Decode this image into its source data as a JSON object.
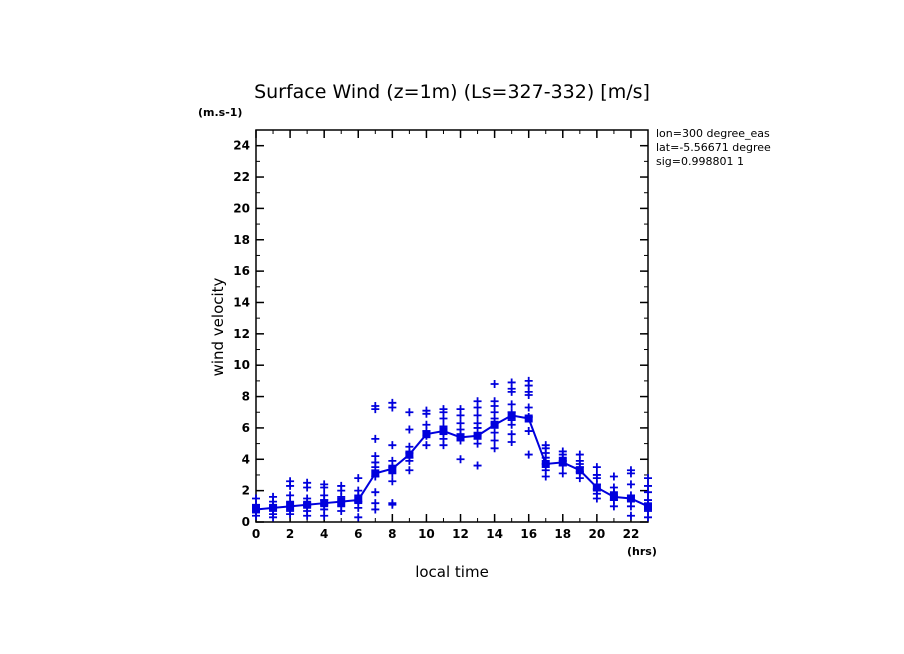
{
  "chart_data": {
    "type": "scatter",
    "title": "Surface Wind (z=1m) (Ls=327-332) [m/s]",
    "ylabel": "wind velocity",
    "xlabel": "local time",
    "y_units_label": "(m.s-1)",
    "x_units_label": "(hrs)",
    "xlim": [
      0,
      23
    ],
    "ylim": [
      0,
      25
    ],
    "x_ticks": [
      0,
      2,
      4,
      6,
      8,
      10,
      12,
      14,
      16,
      18,
      20,
      22
    ],
    "y_ticks": [
      0,
      2,
      4,
      6,
      8,
      10,
      12,
      14,
      16,
      18,
      20,
      22,
      24
    ],
    "info_lines": [
      "lon=300 degree_eas",
      "lat=-5.56671 degree",
      "sig=0.998801 1"
    ],
    "color": "#0000dd",
    "mean_series": {
      "name": "mean",
      "x": [
        0,
        1,
        2,
        3,
        4,
        5,
        6,
        7,
        8,
        9,
        10,
        11,
        12,
        13,
        14,
        15,
        16,
        17,
        18,
        19,
        20,
        21,
        22,
        23
      ],
      "y": [
        0.8,
        0.9,
        1.0,
        1.1,
        1.2,
        1.3,
        1.4,
        3.1,
        3.4,
        4.3,
        5.6,
        5.8,
        5.4,
        5.5,
        6.2,
        6.8,
        6.6,
        3.7,
        3.8,
        3.3,
        2.2,
        1.6,
        1.5,
        1.0
      ]
    },
    "scatter_points": [
      {
        "x": 0,
        "y": [
          0.4,
          0.7,
          0.9,
          1.1,
          1.5
        ]
      },
      {
        "x": 1,
        "y": [
          0.3,
          0.5,
          0.8,
          1.0,
          1.3,
          1.6
        ]
      },
      {
        "x": 2,
        "y": [
          0.5,
          0.7,
          1.0,
          1.3,
          1.7,
          2.3,
          2.6
        ]
      },
      {
        "x": 3,
        "y": [
          0.4,
          0.7,
          1.0,
          1.2,
          1.5,
          2.2,
          2.5
        ]
      },
      {
        "x": 4,
        "y": [
          0.4,
          0.8,
          1.1,
          1.4,
          1.7,
          2.2,
          2.4
        ]
      },
      {
        "x": 5,
        "y": [
          0.7,
          1.0,
          1.3,
          1.6,
          2.0,
          2.3
        ]
      },
      {
        "x": 6,
        "y": [
          0.3,
          0.9,
          1.3,
          1.7,
          2.0,
          2.8
        ]
      },
      {
        "x": 7,
        "y": [
          0.8,
          1.2,
          1.9,
          2.9,
          3.5,
          3.8,
          4.2,
          5.3,
          7.2,
          7.4
        ]
      },
      {
        "x": 8,
        "y": [
          1.1,
          1.2,
          2.6,
          3.1,
          3.5,
          3.9,
          4.9,
          7.3,
          7.6
        ]
      },
      {
        "x": 9,
        "y": [
          3.3,
          3.9,
          4.1,
          4.4,
          4.8,
          5.9,
          7.0
        ]
      },
      {
        "x": 10,
        "y": [
          4.9,
          5.5,
          5.8,
          6.2,
          6.9,
          7.1
        ]
      },
      {
        "x": 11,
        "y": [
          4.9,
          5.3,
          5.7,
          6.1,
          6.6,
          7.0,
          7.2
        ]
      },
      {
        "x": 12,
        "y": [
          4.0,
          5.2,
          5.6,
          5.9,
          6.3,
          6.8,
          7.2
        ]
      },
      {
        "x": 13,
        "y": [
          3.6,
          5.0,
          5.5,
          6.0,
          6.3,
          6.8,
          7.3,
          7.7
        ]
      },
      {
        "x": 14,
        "y": [
          4.7,
          5.2,
          5.7,
          6.3,
          6.6,
          7.0,
          7.4,
          7.7,
          8.8
        ]
      },
      {
        "x": 15,
        "y": [
          5.1,
          5.6,
          6.2,
          6.5,
          7.0,
          7.5,
          8.3,
          8.5,
          8.9
        ]
      },
      {
        "x": 16,
        "y": [
          4.3,
          5.8,
          6.7,
          7.3,
          8.1,
          8.3,
          8.7,
          9.0
        ]
      },
      {
        "x": 17,
        "y": [
          2.9,
          3.3,
          3.7,
          4.1,
          4.4,
          4.7,
          4.9
        ]
      },
      {
        "x": 18,
        "y": [
          3.1,
          3.6,
          3.9,
          4.1,
          4.3,
          4.5
        ]
      },
      {
        "x": 19,
        "y": [
          2.8,
          3.2,
          3.5,
          3.7,
          3.9,
          4.3
        ]
      },
      {
        "x": 20,
        "y": [
          1.5,
          1.8,
          2.1,
          2.4,
          2.8,
          3.0,
          3.5
        ]
      },
      {
        "x": 21,
        "y": [
          1.0,
          1.4,
          1.7,
          1.9,
          2.2,
          2.9
        ]
      },
      {
        "x": 22,
        "y": [
          0.4,
          1.0,
          1.4,
          1.7,
          2.4,
          3.1,
          3.3
        ]
      },
      {
        "x": 23,
        "y": [
          0.3,
          0.7,
          1.0,
          1.4,
          1.9,
          2.3,
          2.8
        ]
      }
    ]
  }
}
